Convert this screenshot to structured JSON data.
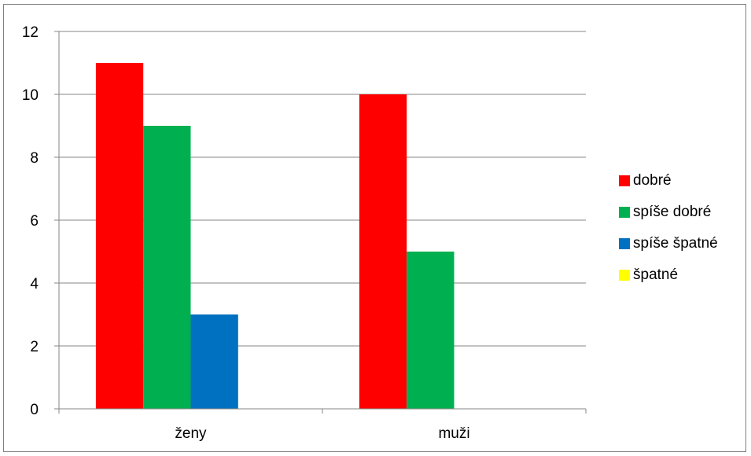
{
  "chart_data": {
    "type": "bar",
    "categories": [
      "ženy",
      "muži"
    ],
    "series": [
      {
        "name": "dobré",
        "values": [
          11,
          10
        ],
        "color": "#ff0000"
      },
      {
        "name": "spíše dobré",
        "values": [
          9,
          5
        ],
        "color": "#00b050"
      },
      {
        "name": "spíše špatné",
        "values": [
          3,
          0
        ],
        "color": "#0070c0"
      },
      {
        "name": "špatné",
        "values": [
          0,
          0
        ],
        "color": "#ffff00"
      }
    ],
    "ylim": [
      0,
      12
    ],
    "yticks": [
      0,
      2,
      4,
      6,
      8,
      10,
      12
    ],
    "grid": true,
    "legend_position": "right"
  }
}
